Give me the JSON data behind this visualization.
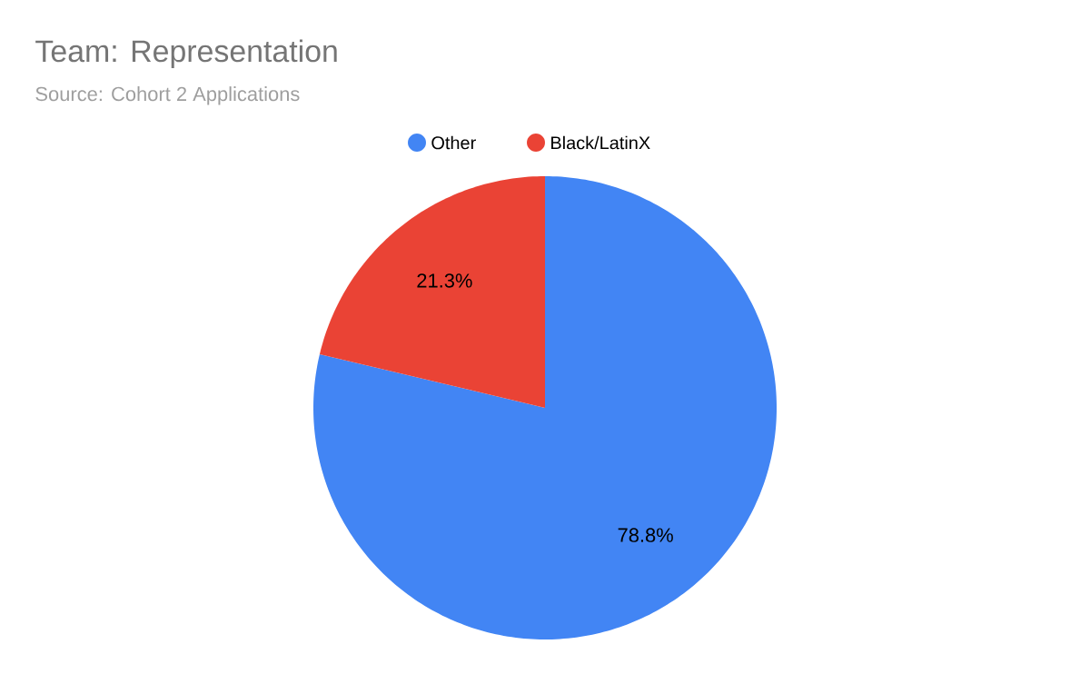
{
  "chart_data": {
    "type": "pie",
    "title": "Team: Representation",
    "subtitle": "Source: Cohort 2 Applications",
    "categories": [
      "Other",
      "Black/LatinX"
    ],
    "values": [
      78.8,
      21.3
    ],
    "colors": [
      "#4285f4",
      "#ea4335"
    ],
    "value_labels": [
      "78.8%",
      "21.3%"
    ],
    "legend": "top"
  }
}
